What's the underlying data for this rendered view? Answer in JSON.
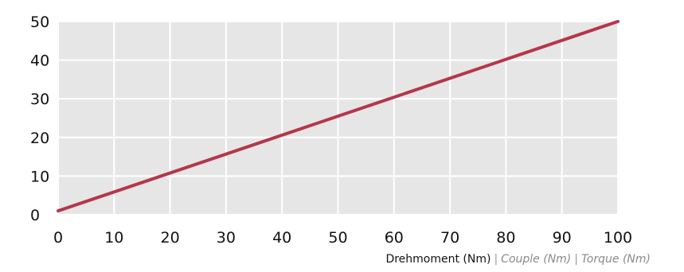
{
  "chart_data": {
    "type": "line",
    "x": [
      0,
      100
    ],
    "series": [
      {
        "values": [
          1,
          50
        ],
        "color": "#b5364a"
      }
    ],
    "xticks": [
      "0",
      "10",
      "20",
      "30",
      "40",
      "50",
      "60",
      "70",
      "80",
      "90",
      "100"
    ],
    "yticks": [
      "0",
      "10",
      "20",
      "30",
      "40",
      "50"
    ],
    "xlim": [
      0,
      100
    ],
    "ylim": [
      0,
      50
    ],
    "grid": true,
    "xlabel": {
      "primary": "Drehmoment (Nm)",
      "separator": "|",
      "fr": "Couple (Nm)",
      "en": "Torque (Nm)"
    },
    "ylabel": "",
    "plot_background": "#e6e6e6"
  }
}
